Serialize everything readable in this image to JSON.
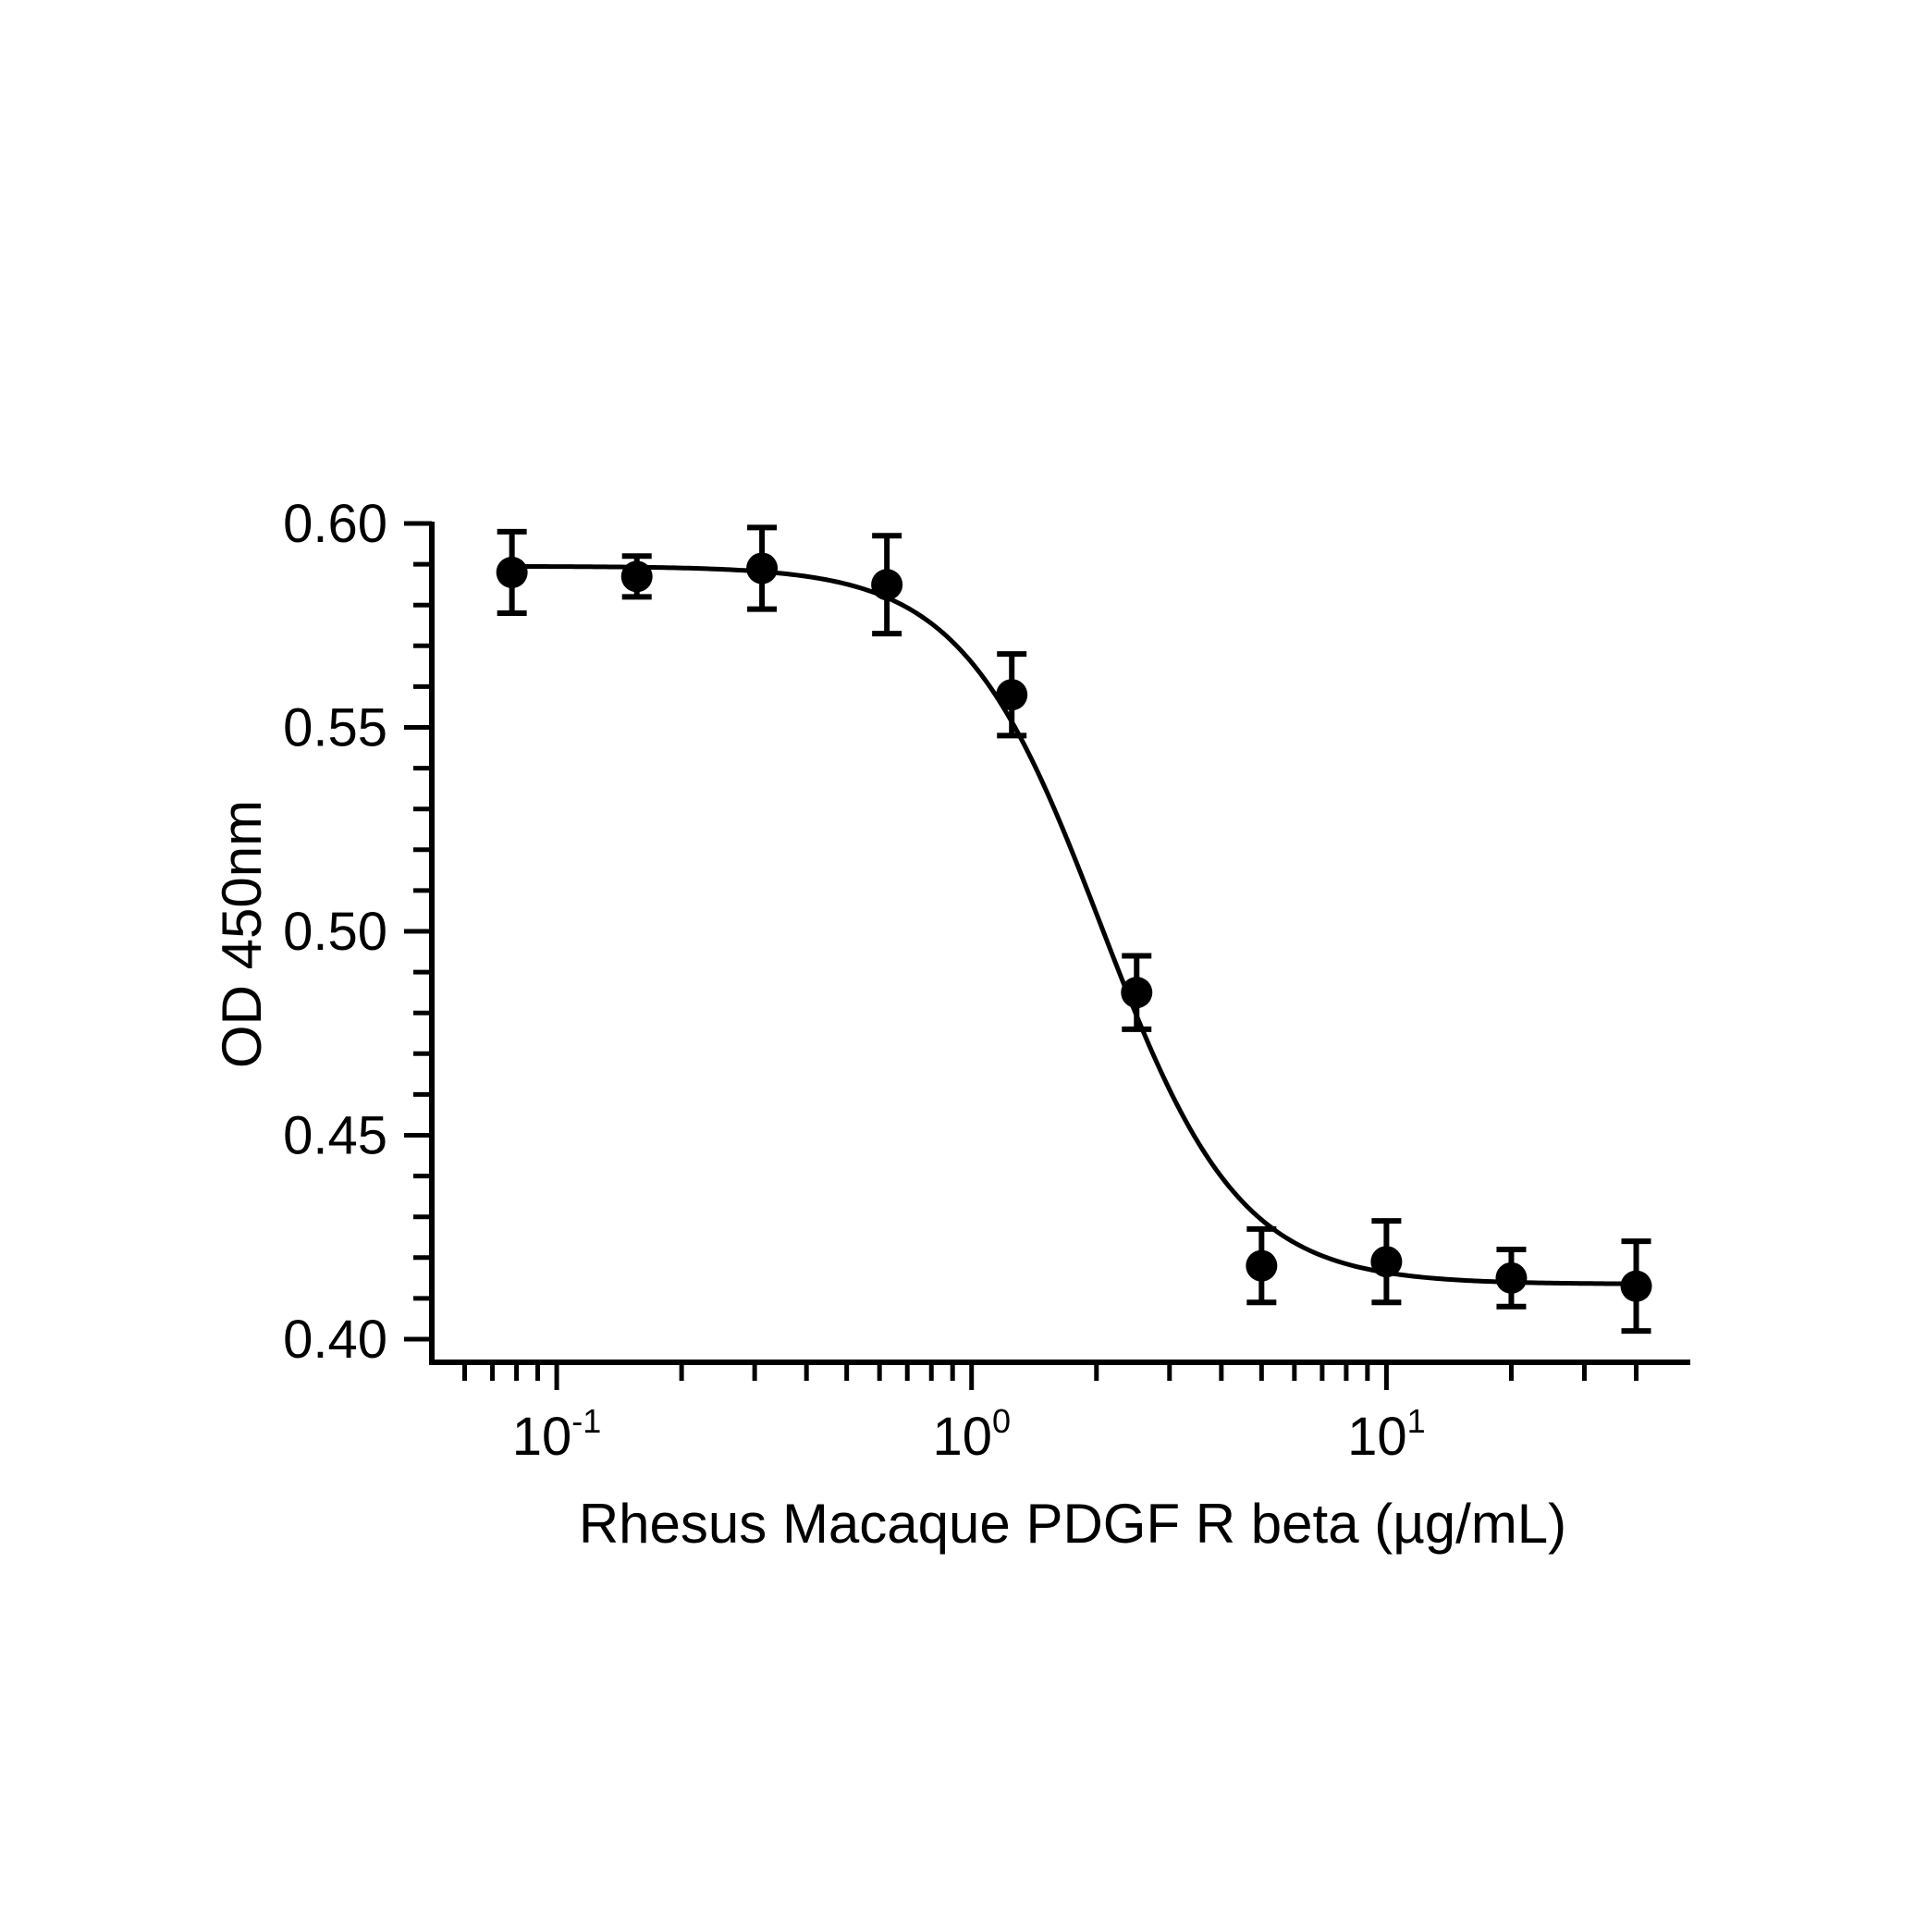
{
  "chart_data": {
    "type": "scatter",
    "title": "",
    "xlabel": "Rhesus Macaque PDGF R beta (µg/mL)",
    "ylabel": "OD 450nm",
    "x_scale": "log10",
    "xlim": [
      0.05,
      50
    ],
    "ylim": [
      0.4,
      0.6
    ],
    "x_major_ticks": [
      {
        "value": 0.1,
        "base": "10",
        "exp": "-1"
      },
      {
        "value": 1,
        "base": "10",
        "exp": "0"
      },
      {
        "value": 10,
        "base": "10",
        "exp": "1"
      }
    ],
    "x_minor_ticks": [
      0.06,
      0.07,
      0.08,
      0.09,
      0.2,
      0.3,
      0.4,
      0.5,
      0.6,
      0.7,
      0.8,
      0.9,
      2,
      3,
      4,
      5,
      6,
      7,
      8,
      9,
      20,
      30,
      40
    ],
    "y_major_ticks": [
      {
        "value": 0.4,
        "label": "0.40"
      },
      {
        "value": 0.45,
        "label": "0.45"
      },
      {
        "value": 0.5,
        "label": "0.50"
      },
      {
        "value": 0.55,
        "label": "0.55"
      },
      {
        "value": 0.6,
        "label": "0.60"
      }
    ],
    "y_minor_step": 0.01,
    "grid": false,
    "legend": "none",
    "series": [
      {
        "x": [
          0.078,
          0.156,
          0.3125,
          0.625,
          1.25,
          2.5,
          5,
          10,
          20,
          40
        ],
        "y": [
          0.588,
          0.587,
          0.589,
          0.585,
          0.558,
          0.485,
          0.418,
          0.419,
          0.415,
          0.413
        ],
        "err": [
          0.01,
          0.005,
          0.01,
          0.012,
          0.01,
          0.009,
          0.009,
          0.01,
          0.007,
          0.011
        ],
        "color": "#000000"
      }
    ],
    "fit_curve": {
      "model": "4PL",
      "top": 0.5895,
      "bottom": 0.4135,
      "ec50": 2.05,
      "hill": 2.6,
      "color": "#000000"
    }
  }
}
